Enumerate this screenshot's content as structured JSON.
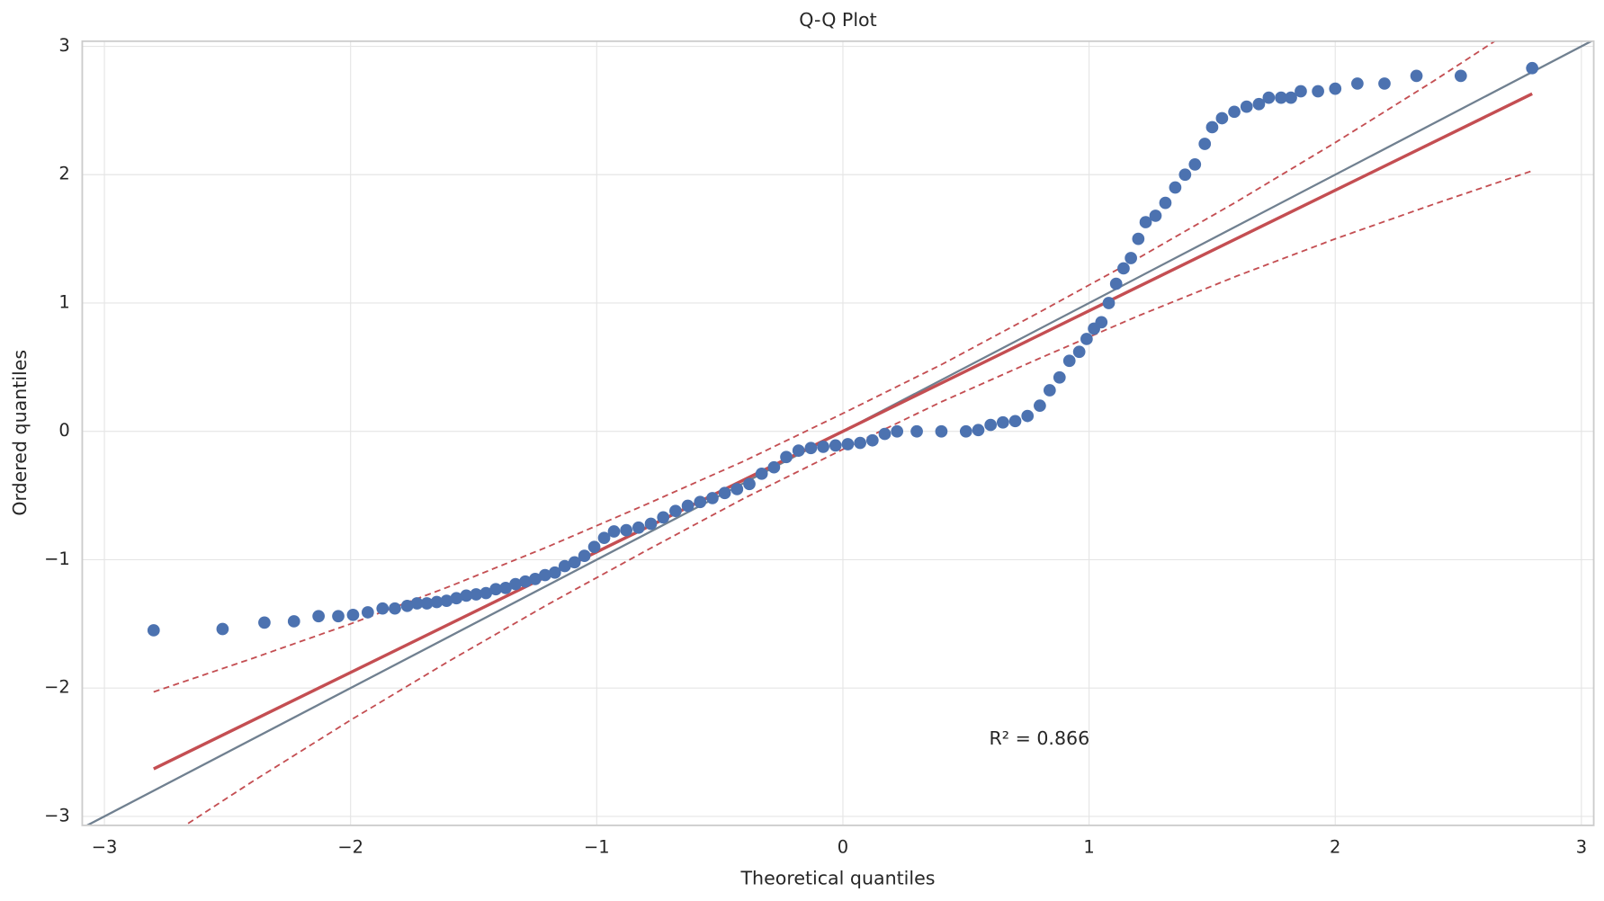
{
  "chart_data": {
    "type": "scatter",
    "title": "Q-Q Plot",
    "x_label": "Theoretical quantiles",
    "y_label": "Ordered quantiles",
    "annotation": "R² = 0.866",
    "xlim": [
      -3.09,
      3.05
    ],
    "ylim": [
      -3.07,
      3.04
    ],
    "xticks": [
      {
        "value": -3,
        "label": "−3"
      },
      {
        "value": -2,
        "label": "−2"
      },
      {
        "value": -1,
        "label": "−1"
      },
      0,
      1,
      2,
      3
    ],
    "yticks": [
      {
        "value": -3,
        "label": "−3"
      },
      {
        "value": -2,
        "label": "−2"
      },
      {
        "value": -1,
        "label": "−1"
      },
      0,
      1,
      2,
      3
    ],
    "grid": true,
    "color": "#4c72b0",
    "x": [
      -2.8,
      -2.52,
      -2.35,
      -2.23,
      -2.13,
      -2.05,
      -1.99,
      -1.93,
      -1.87,
      -1.82,
      -1.77,
      -1.73,
      -1.69,
      -1.65,
      -1.61,
      -1.57,
      -1.53,
      -1.49,
      -1.45,
      -1.41,
      -1.37,
      -1.33,
      -1.29,
      -1.25,
      -1.21,
      -1.17,
      -1.13,
      -1.09,
      -1.05,
      -1.01,
      -0.97,
      -0.93,
      -0.88,
      -0.83,
      -0.78,
      -0.73,
      -0.68,
      -0.63,
      -0.58,
      -0.53,
      -0.48,
      -0.43,
      -0.38,
      -0.33,
      -0.28,
      -0.23,
      -0.18,
      -0.13,
      -0.08,
      -0.03,
      0.02,
      0.07,
      0.12,
      0.17,
      0.22,
      0.3,
      0.4,
      0.5,
      0.55,
      0.6,
      0.65,
      0.7,
      0.75,
      0.8,
      0.84,
      0.88,
      0.92,
      0.96,
      0.99,
      1.02,
      1.05,
      1.08,
      1.11,
      1.14,
      1.17,
      1.2,
      1.23,
      1.27,
      1.31,
      1.35,
      1.39,
      1.43,
      1.47,
      1.5,
      1.54,
      1.59,
      1.64,
      1.69,
      1.73,
      1.78,
      1.82,
      1.86,
      1.93,
      2.0,
      2.09,
      2.2,
      2.33,
      2.51,
      2.8
    ],
    "y": [
      -1.55,
      -1.54,
      -1.49,
      -1.48,
      -1.44,
      -1.44,
      -1.43,
      -1.41,
      -1.38,
      -1.38,
      -1.36,
      -1.34,
      -1.34,
      -1.33,
      -1.32,
      -1.3,
      -1.28,
      -1.27,
      -1.26,
      -1.23,
      -1.22,
      -1.19,
      -1.17,
      -1.15,
      -1.12,
      -1.1,
      -1.05,
      -1.02,
      -0.97,
      -0.9,
      -0.83,
      -0.78,
      -0.77,
      -0.75,
      -0.72,
      -0.67,
      -0.62,
      -0.58,
      -0.55,
      -0.52,
      -0.48,
      -0.45,
      -0.41,
      -0.33,
      -0.28,
      -0.2,
      -0.15,
      -0.13,
      -0.12,
      -0.11,
      -0.1,
      -0.09,
      -0.07,
      -0.02,
      0,
      0,
      0,
      0,
      0.01,
      0.05,
      0.07,
      0.08,
      0.12,
      0.2,
      0.32,
      0.42,
      0.55,
      0.62,
      0.72,
      0.8,
      0.85,
      1.0,
      1.15,
      1.27,
      1.35,
      1.5,
      1.63,
      1.68,
      1.78,
      1.9,
      2.0,
      2.08,
      2.24,
      2.37,
      2.44,
      2.49,
      2.53,
      2.55,
      2.6,
      2.6,
      2.6,
      2.65,
      2.65,
      2.67,
      2.71,
      2.71,
      2.77,
      2.77,
      2.83
    ],
    "reference_line": {
      "color": "#708090"
    },
    "fit": {
      "color": "#c44e52",
      "x": [
        -2.8,
        2.8
      ],
      "y": [
        -2.63,
        2.63
      ]
    },
    "band": {
      "color": "#c44e52",
      "x": [
        -2.8,
        -2.4,
        -2.0,
        -1.6,
        -1.2,
        -0.8,
        -0.4,
        0,
        0.4,
        0.8,
        1.2,
        1.6,
        2.0,
        2.4,
        2.8
      ],
      "upper": [
        -2.03,
        -1.77,
        -1.5,
        -1.21,
        -0.9,
        -0.57,
        -0.23,
        0.14,
        0.52,
        0.93,
        1.35,
        1.79,
        2.25,
        2.73,
        3.23
      ],
      "lower": [
        -3.23,
        -2.73,
        -2.25,
        -1.79,
        -1.35,
        -0.93,
        -0.52,
        -0.14,
        0.23,
        0.57,
        0.9,
        1.21,
        1.5,
        1.77,
        2.03
      ]
    }
  }
}
